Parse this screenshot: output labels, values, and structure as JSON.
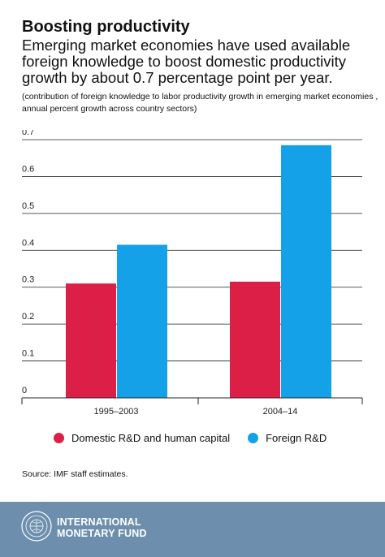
{
  "header": {
    "title": "Boosting productivity",
    "subtitle": "Emerging market economies have used available foreign knowledge to boost domestic productivity growth by about 0.7 percentage point per year.",
    "note": "(contribution of foreign knowledge to labor productivity growth in emerging market economies , annual percent growth across country sectors)"
  },
  "chart_data": {
    "type": "bar",
    "categories": [
      "1995–2003",
      "2004–14"
    ],
    "series": [
      {
        "name": "Domestic R&D and human capital",
        "values": [
          0.31,
          0.315
        ],
        "color": "#dc1f47"
      },
      {
        "name": "Foreign R&D",
        "values": [
          0.415,
          0.685
        ],
        "color": "#14a1e8"
      }
    ],
    "yticks": [
      "0",
      "0.1",
      "0.2",
      "0.3",
      "0.4",
      "0.5",
      "0.6",
      "0.7"
    ],
    "ylim": [
      0,
      0.7
    ],
    "grid": true,
    "legend_position": "bottom"
  },
  "source": "Source: IMF staff estimates.",
  "footer": {
    "org_line1": "INTERNATIONAL",
    "org_line2": "MONETARY FUND",
    "seal_icon": "imf-seal-icon"
  }
}
